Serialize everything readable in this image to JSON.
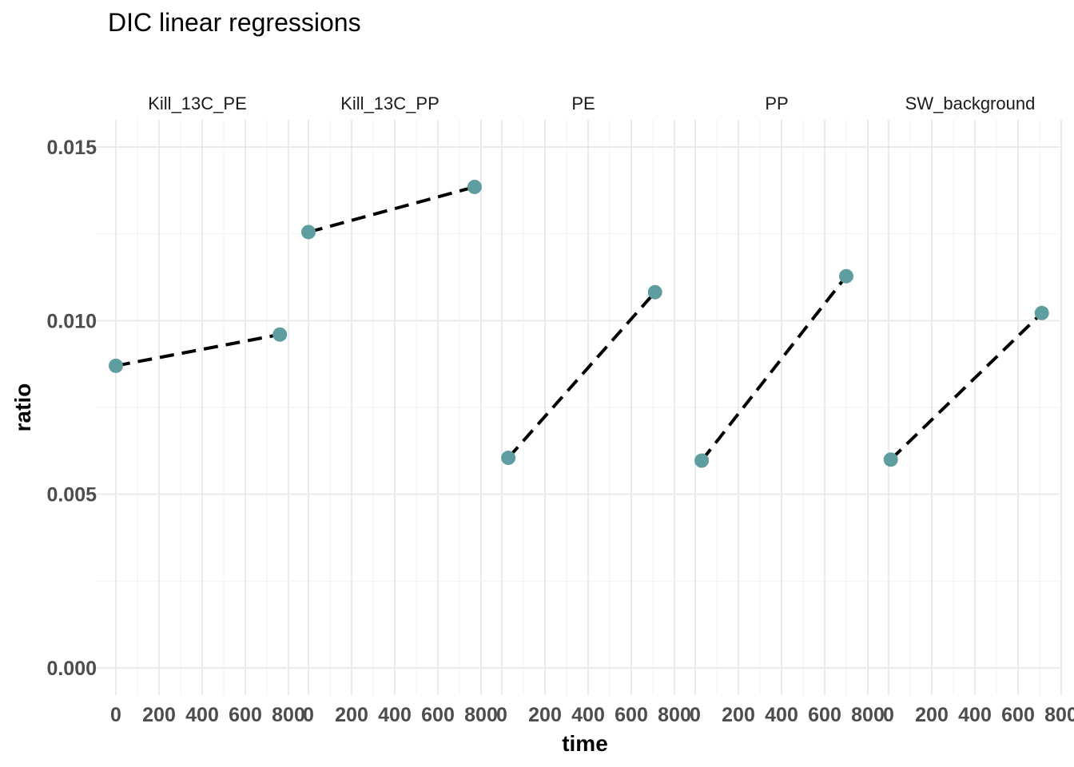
{
  "chart_data": {
    "type": "scatter",
    "title": "DIC linear regressions",
    "xlabel": "time",
    "ylabel": "ratio",
    "xlim": [
      0,
      800
    ],
    "ylim": [
      0,
      0.015
    ],
    "x_ticks": [
      "0",
      "200",
      "400",
      "600",
      "800"
    ],
    "y_ticks": [
      "0.000",
      "0.005",
      "0.010",
      "0.015"
    ],
    "grid": true,
    "point_color": "#5F9EA0",
    "line_color": "#000000",
    "line_style": "dashed",
    "panels": [
      {
        "name": "Kill_13C_PE",
        "x": [
          0,
          760
        ],
        "y": [
          0.0087,
          0.0096
        ]
      },
      {
        "name": "Kill_13C_PP",
        "x": [
          0,
          770
        ],
        "y": [
          0.01255,
          0.01385
        ]
      },
      {
        "name": "PE",
        "x": [
          30,
          710
        ],
        "y": [
          0.00605,
          0.01082
        ]
      },
      {
        "name": "PP",
        "x": [
          30,
          700
        ],
        "y": [
          0.00597,
          0.01128
        ]
      },
      {
        "name": "SW_background",
        "x": [
          10,
          710
        ],
        "y": [
          0.006,
          0.01022
        ]
      }
    ]
  }
}
